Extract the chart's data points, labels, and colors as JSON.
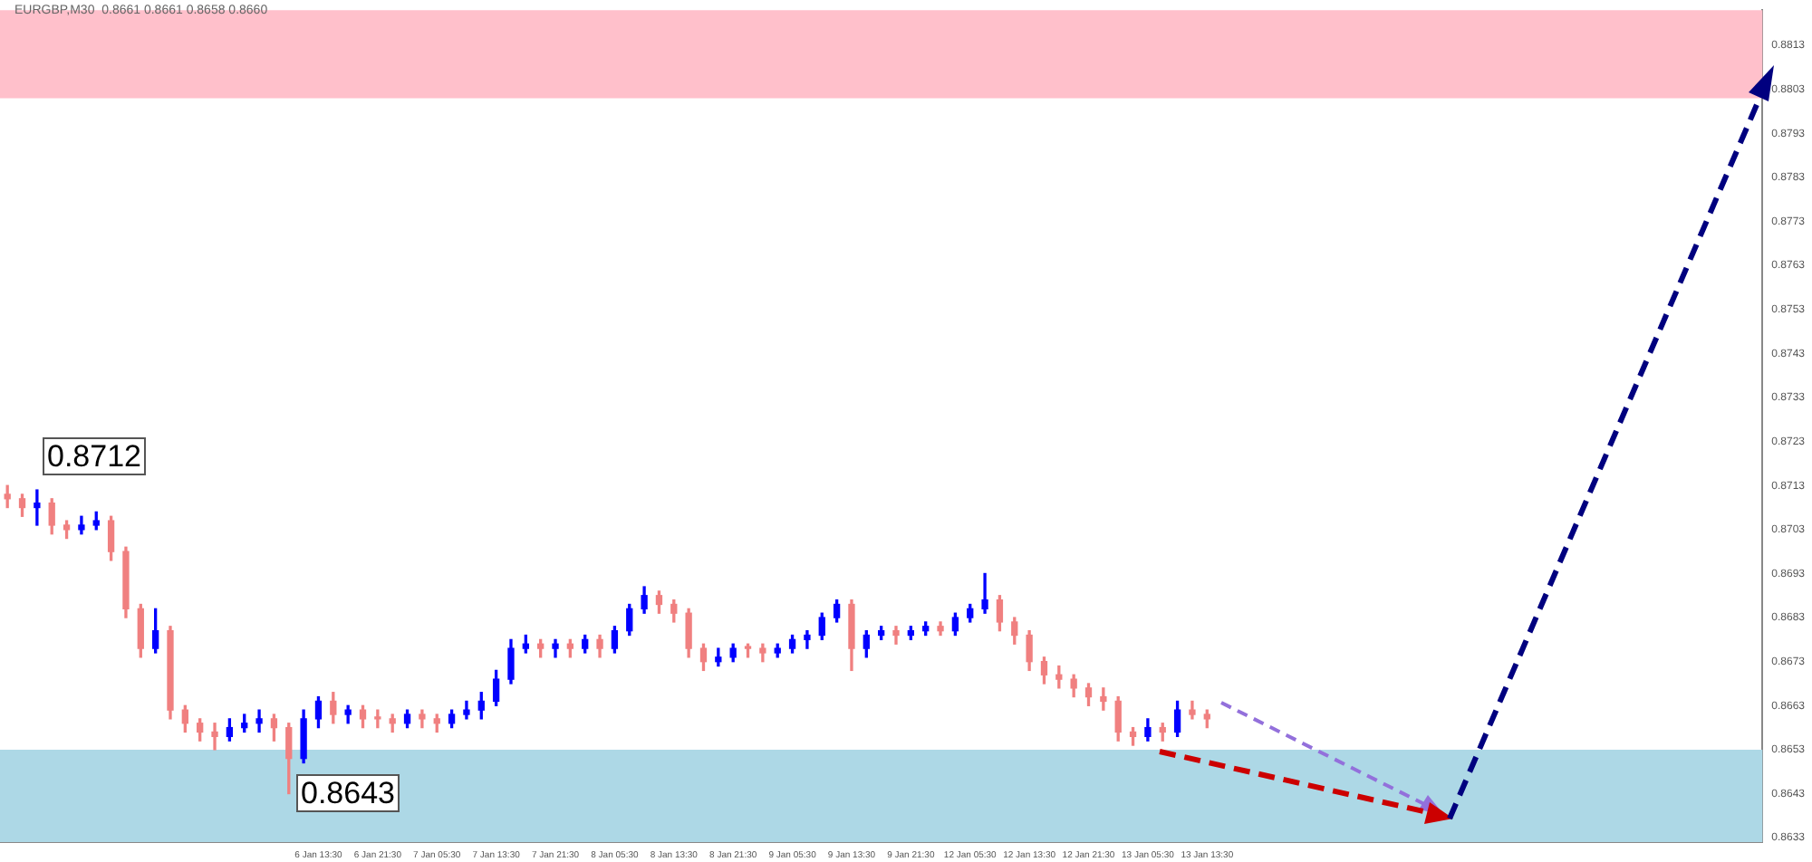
{
  "chart_data": {
    "type": "candlestick",
    "title": "EURGBP,M30  0.8661 0.8661 0.8658 0.8660",
    "categories": [
      null,
      null,
      null,
      null,
      null,
      null,
      null,
      null,
      null,
      null,
      null,
      null,
      null,
      null,
      null,
      null,
      null,
      null,
      null,
      null,
      null,
      "6 Jan 13:30",
      null,
      null,
      null,
      "6 Jan 21:30",
      null,
      null,
      null,
      "7 Jan 05:30",
      null,
      null,
      null,
      "7 Jan 13:30",
      null,
      null,
      null,
      "7 Jan 21:30",
      null,
      null,
      null,
      "8 Jan 05:30",
      null,
      null,
      null,
      "8 Jan 13:30",
      null,
      null,
      null,
      "8 Jan 21:30",
      null,
      null,
      null,
      "9 Jan 05:30",
      null,
      null,
      null,
      "9 Jan 13:30",
      null,
      null,
      null,
      "9 Jan 21:30",
      null,
      null,
      null,
      "12 Jan 05:30",
      null,
      null,
      null,
      "12 Jan 13:30",
      null,
      null,
      null,
      "12 Jan 21:30",
      null,
      null,
      null,
      "13 Jan 05:30",
      null,
      null,
      null,
      "13 Jan 13:30",
      null,
      null,
      null,
      null,
      null,
      null,
      null,
      null,
      null,
      null,
      null,
      null,
      null,
      null,
      null,
      null,
      null,
      null,
      null,
      null,
      null,
      null,
      null,
      null,
      null,
      null,
      null,
      null,
      null,
      null,
      null,
      null,
      null,
      null,
      null,
      null,
      null
    ],
    "ohlc": [
      [
        0.8711,
        0.8713,
        0.8708,
        0.871
      ],
      [
        0.871,
        0.8711,
        0.8706,
        0.8708
      ],
      [
        0.8708,
        0.8712,
        0.8704,
        0.8709
      ],
      [
        0.8709,
        0.871,
        0.8702,
        0.8704
      ],
      [
        0.8704,
        0.8705,
        0.8701,
        0.8703
      ],
      [
        0.8703,
        0.8706,
        0.8702,
        0.8704
      ],
      [
        0.8704,
        0.8707,
        0.8703,
        0.8705
      ],
      [
        0.8705,
        0.8706,
        0.8696,
        0.8698
      ],
      [
        0.8698,
        0.8699,
        0.8683,
        0.8685
      ],
      [
        0.8685,
        0.8686,
        0.8674,
        0.8676
      ],
      [
        0.8676,
        0.8685,
        0.8675,
        0.868
      ],
      [
        0.868,
        0.8681,
        0.866,
        0.8662
      ],
      [
        0.8662,
        0.8663,
        0.8657,
        0.8659
      ],
      [
        0.8659,
        0.866,
        0.8655,
        0.8657
      ],
      [
        0.8657,
        0.8659,
        0.8653,
        0.8656
      ],
      [
        0.8656,
        0.866,
        0.8655,
        0.8658
      ],
      [
        0.8658,
        0.8661,
        0.8657,
        0.8659
      ],
      [
        0.8659,
        0.8662,
        0.8657,
        0.866
      ],
      [
        0.866,
        0.8661,
        0.8655,
        0.8658
      ],
      [
        0.8658,
        0.8659,
        0.8643,
        0.8651
      ],
      [
        0.8651,
        0.8662,
        0.865,
        0.866
      ],
      [
        0.866,
        0.8665,
        0.8658,
        0.8664
      ],
      [
        0.8664,
        0.8666,
        0.8659,
        0.8661
      ],
      [
        0.8661,
        0.8663,
        0.8659,
        0.8662
      ],
      [
        0.8662,
        0.8663,
        0.8658,
        0.866
      ],
      [
        0.866,
        0.8662,
        0.8658,
        0.866
      ],
      [
        0.866,
        0.8661,
        0.8657,
        0.8659
      ],
      [
        0.8659,
        0.8662,
        0.8658,
        0.8661
      ],
      [
        0.8661,
        0.8662,
        0.8658,
        0.866
      ],
      [
        0.866,
        0.8661,
        0.8657,
        0.8659
      ],
      [
        0.8659,
        0.8662,
        0.8658,
        0.8661
      ],
      [
        0.8661,
        0.8664,
        0.866,
        0.8662
      ],
      [
        0.8662,
        0.8666,
        0.866,
        0.8664
      ],
      [
        0.8664,
        0.8671,
        0.8663,
        0.8669
      ],
      [
        0.8669,
        0.8678,
        0.8668,
        0.8676
      ],
      [
        0.8676,
        0.8679,
        0.8675,
        0.8677
      ],
      [
        0.8677,
        0.8678,
        0.8674,
        0.8676
      ],
      [
        0.8676,
        0.8678,
        0.8674,
        0.8677
      ],
      [
        0.8677,
        0.8678,
        0.8674,
        0.8676
      ],
      [
        0.8676,
        0.8679,
        0.8675,
        0.8678
      ],
      [
        0.8678,
        0.8679,
        0.8674,
        0.8676
      ],
      [
        0.8676,
        0.8681,
        0.8675,
        0.868
      ],
      [
        0.868,
        0.8686,
        0.8679,
        0.8685
      ],
      [
        0.8685,
        0.869,
        0.8684,
        0.8688
      ],
      [
        0.8688,
        0.8689,
        0.8684,
        0.8686
      ],
      [
        0.8686,
        0.8687,
        0.8682,
        0.8684
      ],
      [
        0.8684,
        0.8685,
        0.8674,
        0.8676
      ],
      [
        0.8676,
        0.8677,
        0.8671,
        0.8673
      ],
      [
        0.8673,
        0.8676,
        0.8672,
        0.8674
      ],
      [
        0.8674,
        0.8677,
        0.8673,
        0.8676
      ],
      [
        0.8676,
        0.8677,
        0.8674,
        0.8676
      ],
      [
        0.8676,
        0.8677,
        0.8673,
        0.8675
      ],
      [
        0.8675,
        0.8677,
        0.8674,
        0.8676
      ],
      [
        0.8676,
        0.8679,
        0.8675,
        0.8678
      ],
      [
        0.8678,
        0.868,
        0.8676,
        0.8679
      ],
      [
        0.8679,
        0.8684,
        0.8678,
        0.8683
      ],
      [
        0.8683,
        0.8687,
        0.8682,
        0.8686
      ],
      [
        0.8686,
        0.8687,
        0.8671,
        0.8676
      ],
      [
        0.8676,
        0.868,
        0.8674,
        0.8679
      ],
      [
        0.8679,
        0.8681,
        0.8678,
        0.868
      ],
      [
        0.868,
        0.8681,
        0.8677,
        0.8679
      ],
      [
        0.8679,
        0.8681,
        0.8678,
        0.868
      ],
      [
        0.868,
        0.8682,
        0.8679,
        0.8681
      ],
      [
        0.8681,
        0.8682,
        0.8679,
        0.868
      ],
      [
        0.868,
        0.8684,
        0.8679,
        0.8683
      ],
      [
        0.8683,
        0.8686,
        0.8682,
        0.8685
      ],
      [
        0.8685,
        0.8693,
        0.8684,
        0.8687
      ],
      [
        0.8687,
        0.8688,
        0.868,
        0.8682
      ],
      [
        0.8682,
        0.8683,
        0.8677,
        0.8679
      ],
      [
        0.8679,
        0.868,
        0.8671,
        0.8673
      ],
      [
        0.8673,
        0.8674,
        0.8668,
        0.867
      ],
      [
        0.867,
        0.8672,
        0.8667,
        0.8669
      ],
      [
        0.8669,
        0.867,
        0.8665,
        0.8667
      ],
      [
        0.8667,
        0.8668,
        0.8663,
        0.8665
      ],
      [
        0.8665,
        0.8667,
        0.8662,
        0.8664
      ],
      [
        0.8664,
        0.8665,
        0.8655,
        0.8657
      ],
      [
        0.8657,
        0.8658,
        0.8654,
        0.8656
      ],
      [
        0.8656,
        0.866,
        0.8655,
        0.8658
      ],
      [
        0.8658,
        0.8659,
        0.8655,
        0.8657
      ],
      [
        0.8657,
        0.8664,
        0.8656,
        0.8662
      ],
      [
        0.8662,
        0.8664,
        0.866,
        0.8661
      ],
      [
        0.8661,
        0.8662,
        0.8658,
        0.866
      ],
      null,
      null,
      null,
      null,
      null,
      null,
      null,
      null,
      null,
      null,
      null,
      null,
      null,
      null,
      null,
      null,
      null,
      null,
      null,
      null,
      null,
      null,
      null,
      null,
      null,
      null,
      null,
      null,
      null,
      null,
      null,
      null,
      null,
      null,
      null,
      null,
      null
    ],
    "colors": [
      "#f08080",
      "#f08080",
      "#0000ff",
      "#f08080",
      "#f08080",
      "#0000ff",
      "#0000ff",
      "#f08080",
      "#f08080",
      "#f08080",
      "#0000ff",
      "#f08080",
      "#f08080",
      "#f08080",
      "#f08080",
      "#0000ff",
      "#0000ff",
      "#0000ff",
      "#f08080",
      "#f08080",
      "#0000ff",
      "#0000ff",
      "#f08080",
      "#0000ff",
      "#f08080",
      "#f08080",
      "#f08080",
      "#0000ff",
      "#f08080",
      "#f08080",
      "#0000ff",
      "#0000ff",
      "#0000ff",
      "#0000ff",
      "#0000ff",
      "#0000ff",
      "#f08080",
      "#0000ff",
      "#f08080",
      "#0000ff",
      "#f08080",
      "#0000ff",
      "#0000ff",
      "#0000ff",
      "#f08080",
      "#f08080",
      "#f08080",
      "#f08080",
      "#0000ff",
      "#0000ff",
      "#f08080",
      "#f08080",
      "#0000ff",
      "#0000ff",
      "#0000ff",
      "#0000ff",
      "#0000ff",
      "#f08080",
      "#0000ff",
      "#0000ff",
      "#f08080",
      "#0000ff",
      "#0000ff",
      "#f08080",
      "#0000ff",
      "#0000ff",
      "#0000ff",
      "#f08080",
      "#f08080",
      "#f08080",
      "#f08080",
      "#f08080",
      "#f08080",
      "#f08080",
      "#f08080",
      "#f08080",
      "#f08080",
      "#0000ff",
      "#f08080",
      "#0000ff",
      "#f08080",
      "#f08080",
      null,
      null,
      null,
      null,
      null,
      null,
      null,
      null,
      null,
      null,
      null,
      null,
      null,
      null,
      null,
      null,
      null,
      null,
      null,
      null,
      null,
      null,
      null,
      null,
      null,
      null,
      null,
      null,
      null,
      null,
      null,
      null,
      null,
      null,
      null,
      null,
      null
    ],
    "ylim": [
      0.8632,
      0.8821
    ],
    "yticks": [
      0.8633,
      0.8643,
      0.8653,
      0.8663,
      0.8673,
      0.8683,
      0.8693,
      0.8703,
      0.8713,
      0.8723,
      0.8733,
      0.8743,
      0.8753,
      0.8763,
      0.8773,
      0.8783,
      0.8793,
      0.8803,
      0.8813
    ],
    "bands": [
      {
        "axis": "y",
        "from": 0.8801,
        "to": 0.8821,
        "color": "#ffc0cb"
      },
      {
        "axis": "y",
        "from": 0.8632,
        "to": 0.8653,
        "color": "#add8e6"
      }
    ],
    "annotations": [
      "0.8712",
      "0.8643"
    ],
    "grid": false,
    "legend": false
  }
}
